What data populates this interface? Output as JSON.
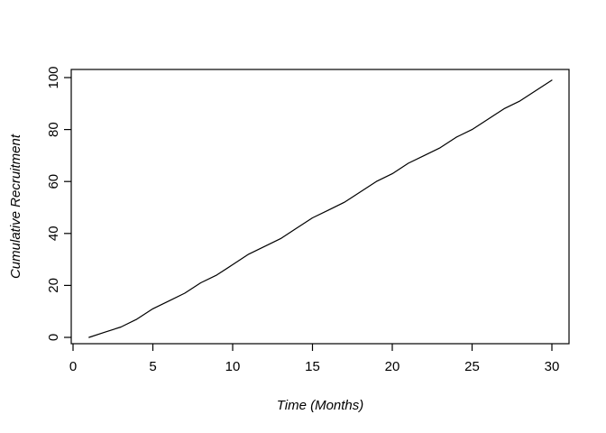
{
  "figure": {
    "background_color": "#ffffff",
    "line_color": "#000000",
    "axis_color": "#000000",
    "text_color": "#000000"
  },
  "chart_data": {
    "type": "line",
    "title": "",
    "xlabel": "Time (Months)",
    "ylabel": "Cumulative Recruitment",
    "x": [
      1,
      2,
      3,
      4,
      5,
      6,
      7,
      8,
      9,
      10,
      11,
      12,
      13,
      14,
      15,
      16,
      17,
      18,
      19,
      20,
      21,
      22,
      23,
      24,
      25,
      26,
      27,
      28,
      29,
      30
    ],
    "values": [
      0,
      2,
      4,
      7,
      11,
      14,
      17,
      21,
      24,
      28,
      32,
      35,
      38,
      42,
      46,
      49,
      52,
      56,
      60,
      63,
      67,
      70,
      73,
      77,
      80,
      84,
      88,
      91,
      95,
      99
    ],
    "x_ticks": [
      0,
      5,
      10,
      15,
      20,
      25,
      30
    ],
    "y_ticks": [
      0,
      20,
      40,
      60,
      80,
      100
    ],
    "xlim": [
      0,
      31
    ],
    "ylim": [
      0,
      103
    ],
    "grid": false,
    "legend": "none",
    "line_style": "solid",
    "marker": "none"
  }
}
